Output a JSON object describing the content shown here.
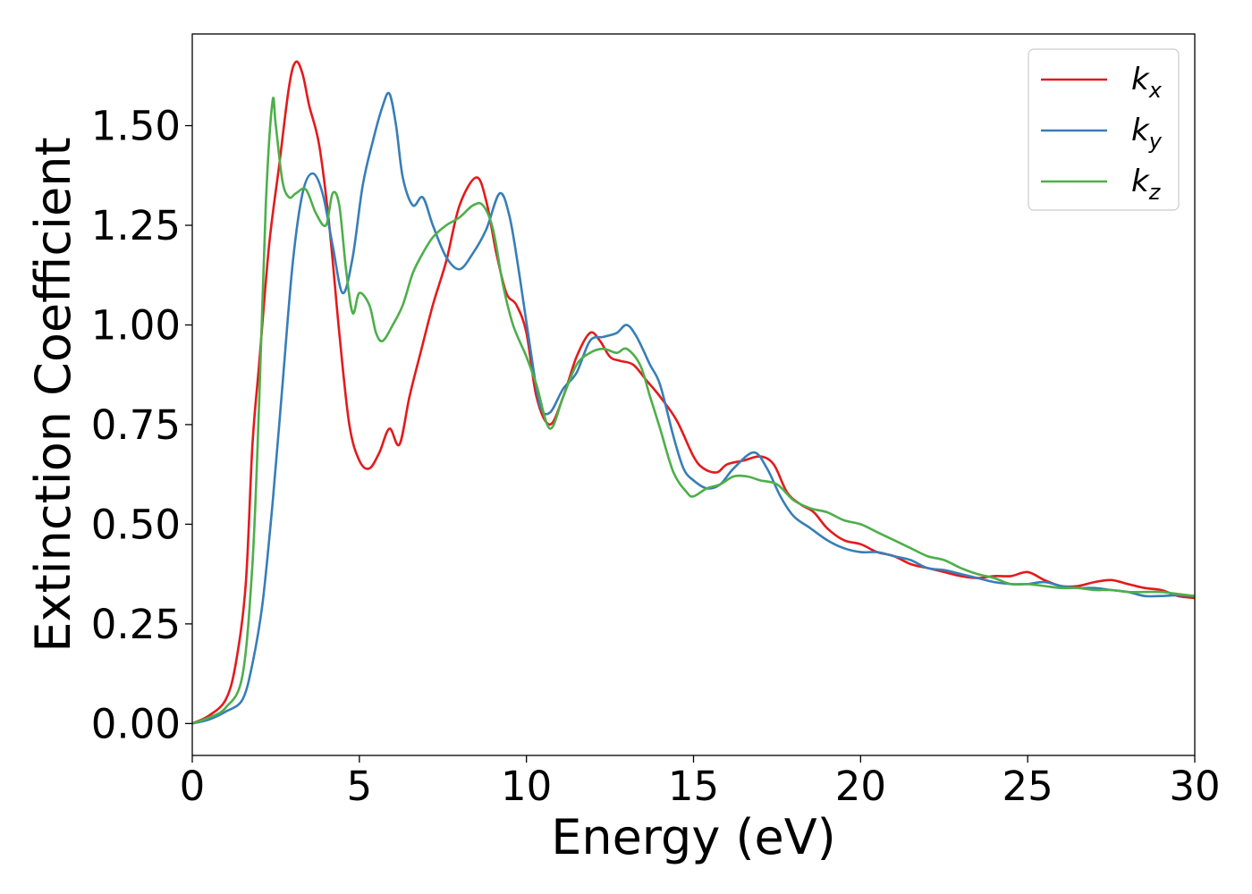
{
  "chart_data": {
    "type": "line",
    "xlabel": "Energy (eV)",
    "ylabel": "Extinction Coefficient",
    "xlim": [
      0,
      30
    ],
    "ylim": [
      -0.08,
      1.73
    ],
    "xticks": [
      0,
      5,
      10,
      15,
      20,
      25,
      30
    ],
    "xtick_labels": [
      "0",
      "5",
      "10",
      "15",
      "20",
      "25",
      "30"
    ],
    "yticks": [
      0,
      0.25,
      0.5,
      0.75,
      1.0,
      1.25,
      1.5
    ],
    "ytick_labels": [
      "0.00",
      "0.25",
      "0.50",
      "0.75",
      "1.00",
      "1.25",
      "1.50"
    ],
    "grid": false,
    "legend_position": "top-right",
    "series": [
      {
        "name": "k_x",
        "legend_base": "k",
        "legend_sub": "x",
        "color": "#e41a1c",
        "x": [
          0,
          0.5,
          1.0,
          1.3,
          1.6,
          1.8,
          2.0,
          2.3,
          2.6,
          2.9,
          3.1,
          3.3,
          3.5,
          3.8,
          4.1,
          4.4,
          4.7,
          5.0,
          5.3,
          5.6,
          5.9,
          6.2,
          6.5,
          6.8,
          7.2,
          7.6,
          8.0,
          8.5,
          8.8,
          9.1,
          9.4,
          9.7,
          10.0,
          10.3,
          10.7,
          11.1,
          11.5,
          11.9,
          12.2,
          12.5,
          12.8,
          13.2,
          13.6,
          14.0,
          14.5,
          15.0,
          15.3,
          15.7,
          16.0,
          16.5,
          17.0,
          17.4,
          17.8,
          18.2,
          18.6,
          19.0,
          19.5,
          20.0,
          20.5,
          21.0,
          21.5,
          22.0,
          22.5,
          23.0,
          23.5,
          24.0,
          24.5,
          25.0,
          25.5,
          26.0,
          26.5,
          27.0,
          27.5,
          28.0,
          28.5,
          29.0,
          29.5,
          30.0
        ],
        "y": [
          0,
          0.02,
          0.06,
          0.15,
          0.35,
          0.7,
          0.9,
          1.2,
          1.4,
          1.6,
          1.66,
          1.63,
          1.55,
          1.45,
          1.25,
          0.98,
          0.75,
          0.66,
          0.64,
          0.68,
          0.74,
          0.7,
          0.82,
          0.92,
          1.05,
          1.16,
          1.3,
          1.37,
          1.31,
          1.18,
          1.08,
          1.05,
          0.98,
          0.82,
          0.75,
          0.82,
          0.92,
          0.98,
          0.96,
          0.92,
          0.91,
          0.9,
          0.86,
          0.82,
          0.76,
          0.67,
          0.64,
          0.63,
          0.65,
          0.66,
          0.67,
          0.65,
          0.58,
          0.55,
          0.53,
          0.49,
          0.46,
          0.45,
          0.43,
          0.42,
          0.4,
          0.39,
          0.38,
          0.37,
          0.365,
          0.37,
          0.37,
          0.38,
          0.36,
          0.345,
          0.345,
          0.355,
          0.36,
          0.35,
          0.34,
          0.335,
          0.32,
          0.315
        ]
      },
      {
        "name": "k_y",
        "legend_base": "k",
        "legend_sub": "y",
        "color": "#377eb8",
        "x": [
          0,
          0.5,
          1.0,
          1.5,
          1.8,
          2.1,
          2.4,
          2.7,
          3.0,
          3.3,
          3.6,
          3.9,
          4.2,
          4.5,
          4.8,
          5.1,
          5.4,
          5.7,
          5.9,
          6.1,
          6.3,
          6.6,
          6.9,
          7.2,
          7.6,
          8.0,
          8.4,
          8.8,
          9.2,
          9.5,
          9.8,
          10.1,
          10.4,
          10.7,
          11.1,
          11.5,
          11.9,
          12.3,
          12.7,
          13.0,
          13.3,
          13.7,
          14.0,
          14.4,
          14.7,
          15.0,
          15.4,
          15.8,
          16.2,
          16.8,
          17.2,
          17.6,
          18.0,
          18.5,
          19.0,
          19.5,
          20.0,
          20.5,
          21.0,
          21.5,
          22.0,
          22.5,
          23.0,
          23.5,
          24.0,
          24.5,
          25.0,
          25.5,
          26.0,
          26.5,
          27.0,
          27.5,
          28.0,
          28.5,
          29.0,
          29.5,
          30.0
        ],
        "y": [
          0,
          0.01,
          0.03,
          0.06,
          0.15,
          0.3,
          0.55,
          0.85,
          1.15,
          1.33,
          1.38,
          1.33,
          1.2,
          1.08,
          1.17,
          1.35,
          1.46,
          1.55,
          1.58,
          1.5,
          1.37,
          1.3,
          1.32,
          1.25,
          1.17,
          1.14,
          1.18,
          1.24,
          1.33,
          1.27,
          1.12,
          0.95,
          0.8,
          0.78,
          0.84,
          0.88,
          0.96,
          0.97,
          0.98,
          1.0,
          0.97,
          0.9,
          0.85,
          0.72,
          0.64,
          0.61,
          0.59,
          0.6,
          0.64,
          0.68,
          0.64,
          0.57,
          0.52,
          0.49,
          0.46,
          0.44,
          0.43,
          0.43,
          0.42,
          0.41,
          0.39,
          0.385,
          0.375,
          0.365,
          0.355,
          0.35,
          0.35,
          0.355,
          0.345,
          0.34,
          0.34,
          0.335,
          0.33,
          0.32,
          0.32,
          0.322,
          0.32
        ]
      },
      {
        "name": "k_z",
        "legend_base": "k",
        "legend_sub": "z",
        "color": "#4daf4a",
        "x": [
          0,
          0.5,
          1.0,
          1.5,
          1.8,
          2.0,
          2.2,
          2.4,
          2.5,
          2.7,
          2.9,
          3.1,
          3.4,
          3.7,
          4.0,
          4.2,
          4.4,
          4.6,
          4.8,
          5.0,
          5.3,
          5.5,
          5.7,
          6.0,
          6.3,
          6.6,
          6.9,
          7.2,
          7.6,
          8.0,
          8.4,
          8.7,
          9.0,
          9.3,
          9.6,
          10.0,
          10.3,
          10.7,
          11.1,
          11.5,
          11.9,
          12.3,
          12.7,
          13.0,
          13.4,
          13.7,
          14.0,
          14.4,
          14.8,
          15.0,
          15.4,
          15.8,
          16.2,
          16.6,
          17.0,
          17.5,
          18.0,
          18.5,
          19.0,
          19.5,
          20.0,
          20.5,
          21.0,
          21.5,
          22.0,
          22.5,
          23.0,
          23.5,
          24.0,
          24.5,
          25.0,
          25.5,
          26.0,
          26.5,
          27.0,
          27.5,
          28.0,
          28.5,
          29.0,
          29.5,
          30.0
        ],
        "y": [
          0,
          0.015,
          0.04,
          0.12,
          0.4,
          0.8,
          1.3,
          1.56,
          1.5,
          1.36,
          1.32,
          1.33,
          1.34,
          1.28,
          1.25,
          1.33,
          1.3,
          1.14,
          1.03,
          1.08,
          1.05,
          0.98,
          0.96,
          1.0,
          1.05,
          1.13,
          1.18,
          1.22,
          1.25,
          1.27,
          1.3,
          1.3,
          1.24,
          1.1,
          1.0,
          0.92,
          0.85,
          0.74,
          0.82,
          0.9,
          0.93,
          0.94,
          0.93,
          0.94,
          0.9,
          0.82,
          0.74,
          0.63,
          0.58,
          0.57,
          0.59,
          0.6,
          0.62,
          0.62,
          0.61,
          0.6,
          0.56,
          0.54,
          0.53,
          0.51,
          0.5,
          0.48,
          0.46,
          0.44,
          0.42,
          0.41,
          0.39,
          0.375,
          0.365,
          0.35,
          0.35,
          0.345,
          0.34,
          0.34,
          0.335,
          0.335,
          0.33,
          0.33,
          0.33,
          0.325,
          0.32
        ]
      }
    ]
  }
}
